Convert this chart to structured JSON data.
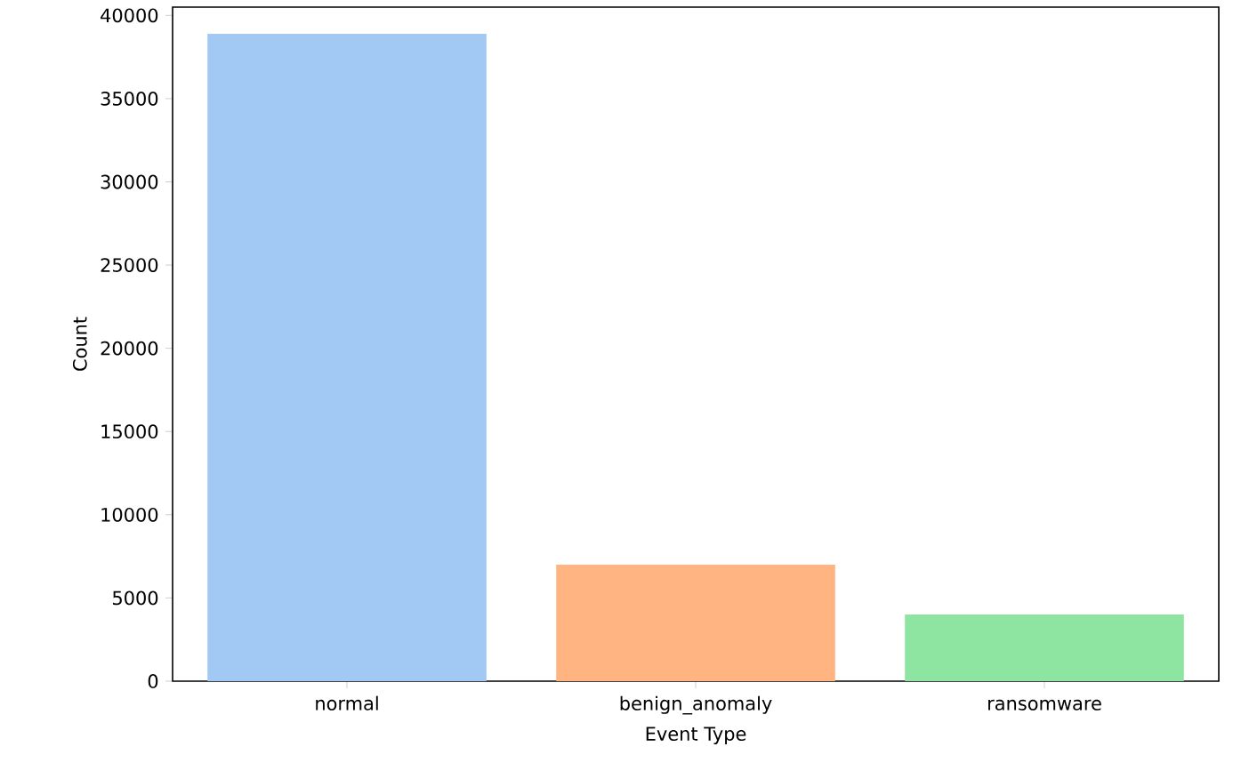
{
  "chart_data": {
    "type": "bar",
    "xlabel": "Event Type",
    "ylabel": "Count",
    "categories": [
      "normal",
      "benign_anomaly",
      "ransomware"
    ],
    "values": [
      38900,
      7000,
      4000
    ],
    "colors": [
      "#a1c9f4",
      "#ffb482",
      "#8de5a1"
    ],
    "ylim": [
      0,
      40500
    ],
    "yticks": [
      0,
      5000,
      10000,
      15000,
      20000,
      25000,
      30000,
      35000,
      40000
    ],
    "grid": false
  }
}
